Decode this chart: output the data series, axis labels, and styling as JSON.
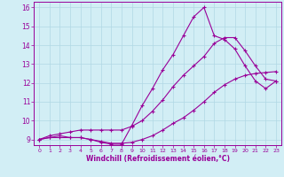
{
  "xlabel": "Windchill (Refroidissement éolien,°C)",
  "ylabel": "",
  "xlim": [
    -0.5,
    23.5
  ],
  "ylim": [
    8.7,
    16.3
  ],
  "xticks": [
    0,
    1,
    2,
    3,
    4,
    5,
    6,
    7,
    8,
    9,
    10,
    11,
    12,
    13,
    14,
    15,
    16,
    17,
    18,
    19,
    20,
    21,
    22,
    23
  ],
  "yticks": [
    9,
    10,
    11,
    12,
    13,
    14,
    15,
    16
  ],
  "bg_color": "#d2eef5",
  "line_color": "#990099",
  "grid_color": "#b0d8e4",
  "line1_x": [
    0,
    1,
    2,
    3,
    4,
    5,
    6,
    7,
    8,
    9,
    10,
    11,
    12,
    13,
    14,
    15,
    16,
    17,
    18,
    19,
    20,
    21,
    22,
    23
  ],
  "line1_y": [
    9.0,
    9.1,
    9.1,
    9.1,
    9.1,
    9.0,
    8.9,
    8.8,
    8.8,
    8.85,
    9.0,
    9.2,
    9.5,
    9.85,
    10.15,
    10.55,
    11.0,
    11.5,
    11.9,
    12.2,
    12.4,
    12.5,
    12.55,
    12.6
  ],
  "line2_x": [
    0,
    1,
    2,
    3,
    4,
    5,
    6,
    7,
    8,
    9,
    10,
    11,
    12,
    13,
    14,
    15,
    16,
    17,
    18,
    19,
    20,
    21,
    22,
    23
  ],
  "line2_y": [
    9.0,
    9.1,
    9.2,
    9.1,
    9.1,
    9.0,
    8.85,
    8.75,
    8.75,
    9.75,
    10.8,
    11.7,
    12.7,
    13.5,
    14.5,
    15.5,
    16.0,
    14.5,
    14.3,
    13.8,
    12.9,
    12.1,
    11.7,
    12.1
  ],
  "line3_x": [
    0,
    1,
    2,
    3,
    4,
    5,
    6,
    7,
    8,
    9,
    10,
    11,
    12,
    13,
    14,
    15,
    16,
    17,
    18,
    19,
    20,
    21,
    22,
    23
  ],
  "line3_y": [
    9.0,
    9.2,
    9.3,
    9.4,
    9.5,
    9.5,
    9.5,
    9.5,
    9.5,
    9.7,
    10.0,
    10.5,
    11.1,
    11.8,
    12.4,
    12.9,
    13.4,
    14.1,
    14.4,
    14.4,
    13.7,
    12.9,
    12.2,
    12.1
  ],
  "marker": "+",
  "markersize": 3,
  "linewidth": 0.8
}
